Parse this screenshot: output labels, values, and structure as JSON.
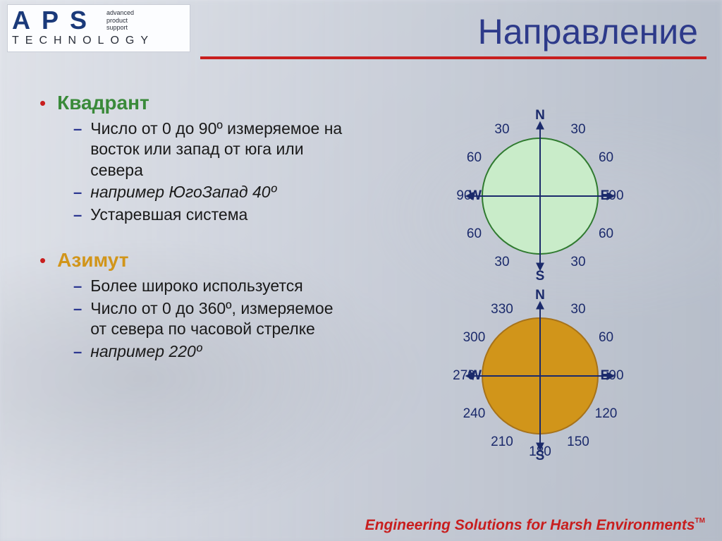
{
  "logo": {
    "brand": "APS",
    "tag1": "advanced",
    "tag2": "product",
    "tag3": "support",
    "sub": "TECHNOLOGY"
  },
  "title": "Направление",
  "bullets": {
    "quadrant": {
      "heading": "Квадрант",
      "items": [
        "Число от 0 до 90º измеряемое на восток или запад от юга или севера",
        "например ЮгоЗапад 40º",
        "Устаревшая система"
      ]
    },
    "azimuth": {
      "heading": "Азимут",
      "items": [
        "Более широко используется",
        "Число от 0 до 360º, измеряемое от севера по часовой стрелке",
        "например 220º"
      ]
    }
  },
  "compass_quadrant": {
    "circle_fill": "#c9ecc9",
    "circle_stroke": "#2f7a2f",
    "axis_color": "#1b2a6b",
    "radius": 82,
    "cardinals": {
      "N": "N",
      "S": "S",
      "E": "E",
      "W": "W"
    },
    "ticks": [
      {
        "angle": 30,
        "label": "30"
      },
      {
        "angle": 60,
        "label": "60"
      },
      {
        "angle": 90,
        "label": "90"
      },
      {
        "angle": 120,
        "label": "60"
      },
      {
        "angle": 150,
        "label": "30"
      },
      {
        "angle": 210,
        "label": "30"
      },
      {
        "angle": 240,
        "label": "60"
      },
      {
        "angle": 270,
        "label": "90"
      },
      {
        "angle": 300,
        "label": "60"
      },
      {
        "angle": 330,
        "label": "30"
      }
    ]
  },
  "compass_azimuth": {
    "circle_fill": "#d1951a",
    "circle_stroke": "#a6721a",
    "axis_color": "#1b2a6b",
    "radius": 82,
    "cardinals": {
      "N": "N",
      "S": "S",
      "E": "E",
      "W": "W"
    },
    "ticks": [
      {
        "angle": 30,
        "label": "30"
      },
      {
        "angle": 60,
        "label": "60"
      },
      {
        "angle": 90,
        "label": "90"
      },
      {
        "angle": 120,
        "label": "120"
      },
      {
        "angle": 150,
        "label": "150"
      },
      {
        "angle": 180,
        "label": "180"
      },
      {
        "angle": 210,
        "label": "210"
      },
      {
        "angle": 240,
        "label": "240"
      },
      {
        "angle": 270,
        "label": "270"
      },
      {
        "angle": 300,
        "label": "300"
      },
      {
        "angle": 330,
        "label": "330"
      }
    ]
  },
  "footer": "Engineering Solutions for Harsh Environments",
  "footer_tm": "TM"
}
